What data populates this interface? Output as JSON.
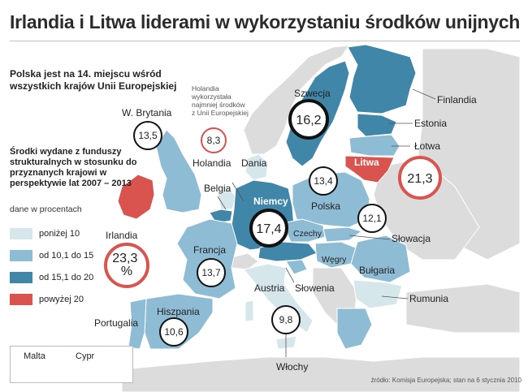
{
  "title": "Irlandia i Litwa liderami w wykorzystaniu środków unijnych",
  "intro": "Polska jest na 14. miejscu wśród wszystkich krajów Unii Europejskiej",
  "legend": {
    "title": "Środki wydane z funduszy strukturalnych w stosunku do przyznanych krajowi w perspektywie lat 2007 – 2013",
    "unit": "dane w procentach",
    "items": [
      {
        "label": "poniżej 10",
        "color": "#d6e7ec"
      },
      {
        "label": "od 10,1 do 15",
        "color": "#8ebcd5"
      },
      {
        "label": "od 15,1 do 20",
        "color": "#3f86a8"
      },
      {
        "label": "powyżej 20",
        "color": "#d9534f"
      }
    ]
  },
  "netherlands_note": "Holandia wykorzystała najmniej środków z Unii Europejskiej",
  "countries": {
    "finlandia": "Finlandia",
    "szwecja": "Szwecja",
    "estonia": "Estonia",
    "lotwa": "Łotwa",
    "litwa": "Litwa",
    "wbrytania": "W. Brytania",
    "irlandia": "Irlandia",
    "holandia": "Holandia",
    "dania": "Dania",
    "belgia": "Belgia",
    "niemcy": "Niemcy",
    "polska": "Polska",
    "czechy": "Czechy",
    "slowacja": "Słowacja",
    "wegry": "Węgry",
    "francja": "Francja",
    "austria": "Austria",
    "slowenia": "Słowenia",
    "bulgaria": "Bułgaria",
    "rumunia": "Rumunia",
    "hiszpania": "Hiszpania",
    "portugalia": "Portugalia",
    "wlochy": "Włochy"
  },
  "values": {
    "szwecja": "16,2",
    "wbrytania": "13,5",
    "holandia": "8,3",
    "litwa": "21,3",
    "polska": "13,4",
    "niemcy": "17,4",
    "czechy": "12,1",
    "irlandia": "23,3\n%",
    "francja": "13,7",
    "hiszpania": "10,6",
    "wlochy": "9,8"
  },
  "inset": {
    "malta": "Malta",
    "cypr": "Cypr"
  },
  "source": "źródło: Komisja Europejska; stan na 6 stycznia 2010"
}
